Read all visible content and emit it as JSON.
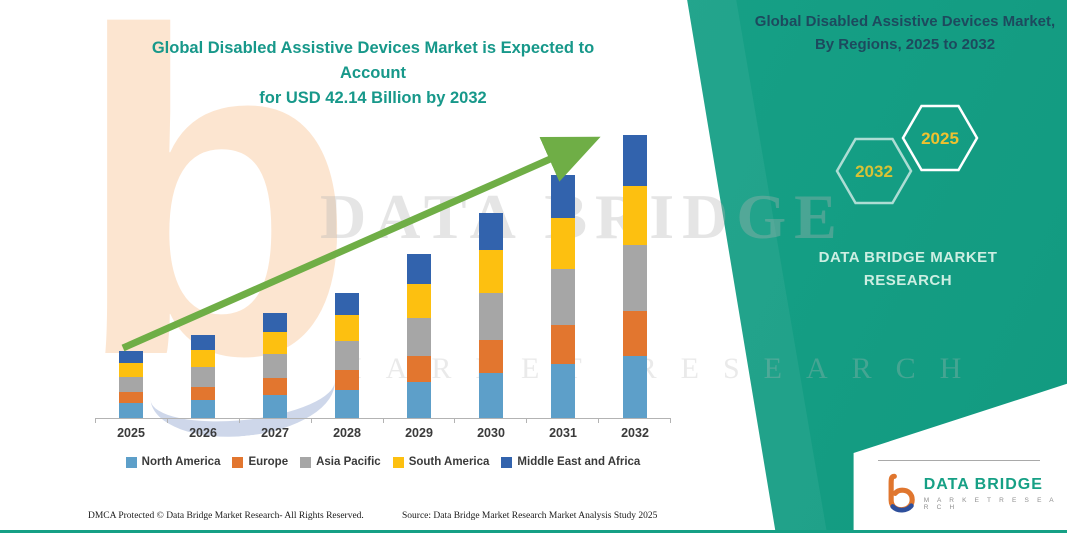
{
  "header": {
    "main_title_line1": "Global Disabled Assistive Devices Market is Expected to Account",
    "main_title_line2": "for USD 42.14 Billion by 2032"
  },
  "side_panel": {
    "title": "Global Disabled Assistive Devices Market, By Regions, 2025 to 2032",
    "hexagons": [
      {
        "label": "2032"
      },
      {
        "label": "2025"
      }
    ],
    "brand_line1": "DATA BRIDGE MARKET",
    "brand_line2": "RESEARCH"
  },
  "chart_data": {
    "type": "bar",
    "stacked": true,
    "title": "Global Disabled Assistive Devices Market is Expected to Account for USD 42.14 Billion by 2032",
    "unit": "USD Billion (values estimated from bar heights; 2032 total stated as USD 42.14 billion)",
    "categories": [
      "2025",
      "2026",
      "2027",
      "2028",
      "2029",
      "2030",
      "2031",
      "2032"
    ],
    "series": [
      {
        "name": "North America",
        "color": "#5d9fc9",
        "values": [
          2.2,
          2.7,
          3.4,
          4.1,
          5.4,
          6.7,
          8.0,
          9.3
        ]
      },
      {
        "name": "Europe",
        "color": "#e2762f",
        "values": [
          1.6,
          2.0,
          2.5,
          3.0,
          3.9,
          4.9,
          5.8,
          6.7
        ]
      },
      {
        "name": "Asia Pacific",
        "color": "#a6a6a6",
        "values": [
          2.3,
          2.9,
          3.6,
          4.3,
          5.6,
          7.0,
          8.3,
          9.7
        ]
      },
      {
        "name": "South America",
        "color": "#fdc010",
        "values": [
          2.1,
          2.6,
          3.3,
          3.9,
          5.1,
          6.4,
          7.6,
          8.9
        ]
      },
      {
        "name": "Middle East and Africa",
        "color": "#3263ad",
        "values": [
          1.8,
          2.2,
          2.8,
          3.3,
          4.4,
          5.5,
          6.5,
          7.5
        ]
      }
    ],
    "totals": [
      10.0,
      12.4,
      15.6,
      18.6,
      24.4,
      30.5,
      36.2,
      42.14
    ],
    "ylim": [
      0,
      45
    ],
    "grid": false,
    "legend_position": "bottom",
    "annotations": [
      "green upward trend arrow across bars"
    ]
  },
  "watermark": {
    "big_letter": "b",
    "brand": "DATA BRIDGE",
    "tagline": "MARKET RESEARCH"
  },
  "footer": {
    "dmca": "DMCA Protected © Data Bridge Market Research-  All Rights Reserved.",
    "source": "Source: Data Bridge Market Research  Market Analysis Study 2025"
  },
  "logo": {
    "name": "DATA BRIDGE",
    "tagline": "M A R K E T   R E S E A R C H"
  },
  "colors": {
    "accent_teal": "#16a085",
    "title_teal": "#17988a",
    "panel_title_navy": "#1d4a5e",
    "arrow_green": "#6fae46",
    "hex_year_gold": "#efc12f"
  }
}
